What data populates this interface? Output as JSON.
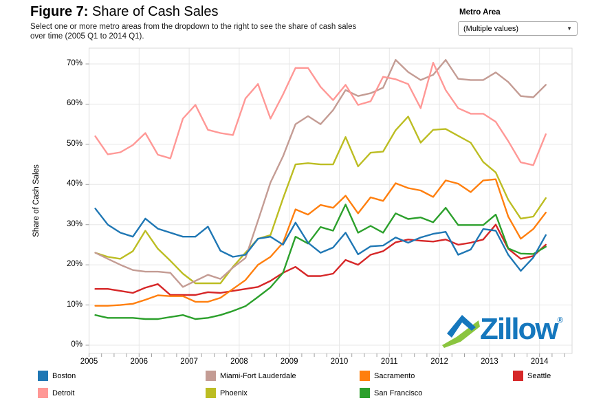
{
  "header": {
    "figure_label": "Figure 7:",
    "title": "Share of Cash Sales",
    "subtitle_line1": "Select one or more metro areas from the dropdown to the right to see the share of cash sales",
    "subtitle_line2": "over time (2005 Q1 to 2014 Q1)."
  },
  "metro_filter": {
    "label": "Metro Area",
    "value": "(Multiple values)",
    "caret_icon": "▼"
  },
  "logo": {
    "text": "Zillow",
    "registered": "®",
    "blue": "#1577bd",
    "green": "#8bc53f"
  },
  "chart_data": {
    "type": "line",
    "title": "Share of Cash Sales",
    "xlabel": "",
    "ylabel": "Share of Cash Sales",
    "x_range": [
      "2005 Q1",
      "2014 Q1"
    ],
    "frequency": "quarterly",
    "quarters_per_year": 4,
    "ylim": [
      0,
      70
    ],
    "grid": true,
    "legend_position": "bottom",
    "year_ticks": [
      2005,
      2006,
      2007,
      2008,
      2009,
      2010,
      2011,
      2012,
      2013,
      2014
    ],
    "y_ticks": [
      "0%",
      "10%",
      "20%",
      "30%",
      "40%",
      "50%",
      "60%",
      "70%"
    ],
    "series": [
      {
        "name": "Boston",
        "color": "#1f77b4",
        "values": [
          34,
          30,
          28,
          27,
          31.5,
          29,
          28,
          27,
          27,
          29.5,
          23.5,
          22,
          22.5,
          26.5,
          27,
          25,
          30.5,
          25.5,
          23,
          24.3,
          28,
          22.6,
          24.6,
          24.8,
          26.8,
          25.5,
          26.8,
          27.7,
          28.2,
          22.5,
          23.8,
          28.9,
          28.5,
          22.5,
          18.5,
          21.8,
          27.4
        ]
      },
      {
        "name": "Detroit",
        "color": "#ff9896",
        "values": [
          52,
          47.5,
          48,
          49.8,
          52.8,
          47.4,
          46.5,
          56.4,
          59.8,
          53.6,
          52.8,
          52.3,
          61.4,
          65,
          56.4,
          62.4,
          69,
          69,
          64.3,
          61,
          64.8,
          59.8,
          60.7,
          66.8,
          66.2,
          65,
          59,
          70.3,
          63.5,
          59,
          57.6,
          57.6,
          55.6,
          50.8,
          45.5,
          44.8,
          52.5
        ]
      },
      {
        "name": "Miami-Fort Lauderdale",
        "color": "#c49c94",
        "values": [
          23,
          21.5,
          20,
          18.7,
          18.3,
          18.3,
          18,
          14.5,
          16,
          17.5,
          16.5,
          19.3,
          21.7,
          31,
          40.5,
          47,
          55,
          57,
          55,
          58.5,
          63.5,
          62,
          62.7,
          64.1,
          71,
          68,
          66,
          67.3,
          71,
          66.3,
          66,
          66,
          67.9,
          65.5,
          62,
          61.7,
          64.8
        ]
      },
      {
        "name": "Phoenix",
        "color": "#bcbd22",
        "values": [
          23,
          22,
          21.5,
          23.4,
          28.5,
          24,
          21,
          17.8,
          15.4,
          15.4,
          15.4,
          19.5,
          23,
          26.5,
          27.4,
          36.5,
          45,
          45.3,
          45,
          45,
          51.8,
          44.5,
          47.9,
          48.2,
          53.5,
          56.9,
          50.4,
          53.6,
          53.8,
          52.1,
          50.4,
          45.6,
          43,
          36.2,
          31.5,
          32,
          36.6
        ]
      },
      {
        "name": "Sacramento",
        "color": "#ff7f0e",
        "values": [
          9.8,
          9.8,
          10,
          10.3,
          11.3,
          12.4,
          12.2,
          12.2,
          10.8,
          10.8,
          11.8,
          14,
          16.2,
          20,
          22,
          25.5,
          33.8,
          32.5,
          34.9,
          34.2,
          37.2,
          32.8,
          36.8,
          35.9,
          40.3,
          39.1,
          38.5,
          36.9,
          41,
          40.2,
          38.1,
          41,
          41.3,
          32,
          26.5,
          28.9,
          33
        ]
      },
      {
        "name": "San Francisco",
        "color": "#2ca02c",
        "values": [
          7.5,
          6.8,
          6.8,
          6.8,
          6.5,
          6.5,
          7,
          7.5,
          6.5,
          6.8,
          7.5,
          8.5,
          9.7,
          12,
          14.4,
          18,
          27,
          25.3,
          29.4,
          28.5,
          35,
          28,
          29.7,
          28,
          32.8,
          31.4,
          31.8,
          30.6,
          34.2,
          29.9,
          29.9,
          29.9,
          32.5,
          24.1,
          22.8,
          22.7,
          24.5
        ]
      },
      {
        "name": "Seattle",
        "color": "#d62728",
        "values": [
          14,
          14,
          13.5,
          13,
          14.3,
          15.2,
          12.5,
          12.5,
          12.5,
          13.2,
          13,
          13.5,
          14,
          14.5,
          16,
          18,
          19.5,
          17.2,
          17.2,
          17.8,
          21.2,
          20,
          22.5,
          23.4,
          25.6,
          26.3,
          26,
          25.8,
          26.3,
          25,
          25.5,
          26.3,
          30,
          24,
          21.5,
          22.2,
          25
        ]
      }
    ]
  }
}
